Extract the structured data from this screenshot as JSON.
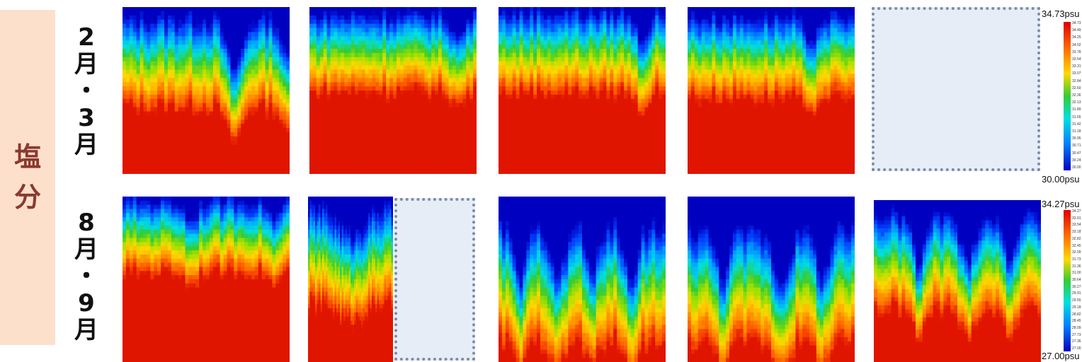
{
  "side_label": [
    "塩",
    "分"
  ],
  "rows": [
    {
      "label_chars": [
        "2",
        "月",
        "・",
        "3",
        "月"
      ]
    },
    {
      "label_chars": [
        "8",
        "月",
        "・",
        "9",
        "月"
      ]
    }
  ],
  "colorbars": [
    {
      "top_label": "34.73psu",
      "bottom_label": "30.00psu",
      "ticks": [
        "34.73",
        "34.49",
        "34.25",
        "34.02",
        "33.78",
        "33.54",
        "33.31",
        "33.07",
        "32.84",
        "32.60",
        "32.36",
        "32.13",
        "31.89",
        "31.65",
        "31.42",
        "31.18",
        "30.95",
        "30.71",
        "30.47",
        "30.24",
        "30.00"
      ]
    },
    {
      "top_label": "34.27psu",
      "bottom_label": "27.00psu",
      "ticks": [
        "34.27",
        "33.91",
        "33.54",
        "33.18",
        "32.82",
        "32.45",
        "32.09",
        "31.73",
        "31.36",
        "31.00",
        "30.64",
        "30.27",
        "29.91",
        "29.55",
        "29.18",
        "28.82",
        "28.45",
        "28.09",
        "27.73",
        "27.36",
        "27.00"
      ]
    }
  ],
  "colors": {
    "side_bg": "#fde0cc",
    "side_text": "#8a3a2e",
    "placeholder_fill": "#e6edf6",
    "placeholder_border": "#7b8ca6"
  },
  "chart_data": [
    {
      "type": "heatmap",
      "row": "2月・3月",
      "panel": 1,
      "vmin": 30.0,
      "vmax": 34.73,
      "description_profile": "low salinity surface, deep blue tongue intruding near right-center"
    },
    {
      "type": "heatmap",
      "row": "2月・3月",
      "panel": 2,
      "vmin": 30.0,
      "vmax": 34.73
    },
    {
      "type": "heatmap",
      "row": "2月・3月",
      "panel": 3,
      "vmin": 30.0,
      "vmax": 34.73
    },
    {
      "type": "heatmap",
      "row": "2月・3月",
      "panel": 4,
      "vmin": 30.0,
      "vmax": 34.73
    },
    {
      "type": "heatmap",
      "row": "8月・9月",
      "panel": 1,
      "vmin": 27.0,
      "vmax": 34.27
    },
    {
      "type": "heatmap",
      "row": "8月・9月",
      "panel": 2,
      "vmin": 27.0,
      "vmax": 34.27
    },
    {
      "type": "heatmap",
      "row": "8月・9月",
      "panel": 3,
      "vmin": 27.0,
      "vmax": 34.27
    },
    {
      "type": "heatmap",
      "row": "8月・9月",
      "panel": 4,
      "vmin": 27.0,
      "vmax": 34.27
    },
    {
      "type": "heatmap",
      "row": "8月・9月",
      "panel": 5,
      "vmin": 27.0,
      "vmax": 34.27
    }
  ]
}
